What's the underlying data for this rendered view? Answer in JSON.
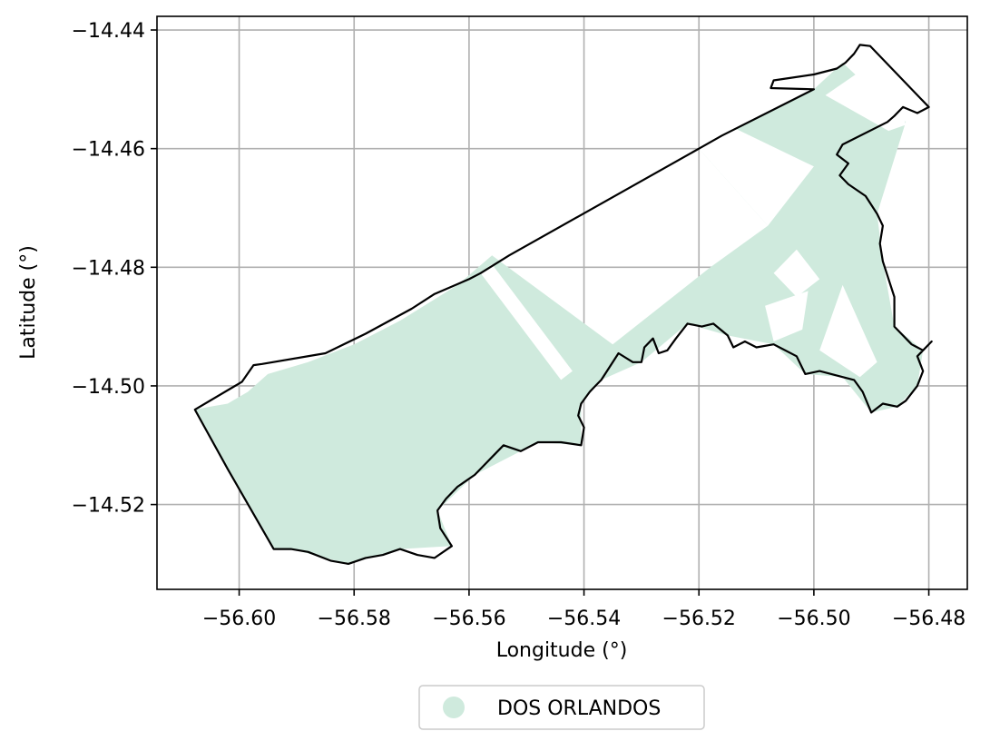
{
  "map": {
    "xlabel": "Longitude (°)",
    "ylabel": "Latitude (°)",
    "xlim": [
      -56.6143,
      -56.4733
    ],
    "ylim": [
      -14.5343,
      -14.4377
    ],
    "xticks": [
      {
        "value": -56.6,
        "label": "−56.60"
      },
      {
        "value": -56.58,
        "label": "−56.58"
      },
      {
        "value": -56.56,
        "label": "−56.56"
      },
      {
        "value": -56.54,
        "label": "−56.54"
      },
      {
        "value": -56.52,
        "label": "−56.52"
      },
      {
        "value": -56.5,
        "label": "−56.50"
      },
      {
        "value": -56.48,
        "label": "−56.48"
      }
    ],
    "yticks": [
      {
        "value": -14.44,
        "label": "−14.44"
      },
      {
        "value": -14.46,
        "label": "−14.46"
      },
      {
        "value": -14.48,
        "label": "−14.48"
      },
      {
        "value": -14.5,
        "label": "−14.50"
      },
      {
        "value": -14.52,
        "label": "−14.52"
      }
    ],
    "grid": true,
    "legend": {
      "placement": "bottom-center",
      "entries": [
        {
          "label": "DOS ORLANDOS",
          "color": "#cfeadd"
        }
      ]
    },
    "fill_color": "#cfeadd",
    "outline_color": "#000000",
    "grid_color": "#b0b0b0",
    "outline": [
      [
        -56.6077,
        -14.504
      ],
      [
        -56.5995,
        -14.4993
      ],
      [
        -56.5975,
        -14.4965
      ],
      [
        -56.596,
        -14.4963
      ],
      [
        -56.585,
        -14.4945
      ],
      [
        -56.578,
        -14.4912
      ],
      [
        -56.57,
        -14.487
      ],
      [
        -56.566,
        -14.4845
      ],
      [
        -56.56,
        -14.482
      ],
      [
        -56.558,
        -14.481
      ],
      [
        -56.553,
        -14.478
      ],
      [
        -56.52,
        -14.46
      ],
      [
        -56.516,
        -14.4578
      ],
      [
        -56.5,
        -14.45
      ],
      [
        -56.5075,
        -14.4498
      ],
      [
        -56.507,
        -14.4485
      ],
      [
        -56.5,
        -14.4475
      ],
      [
        -56.496,
        -14.4465
      ],
      [
        -56.4945,
        -14.4455
      ],
      [
        -56.493,
        -14.444
      ],
      [
        -56.492,
        -14.4425
      ],
      [
        -56.4902,
        -14.4427
      ],
      [
        -56.48,
        -14.453
      ],
      [
        -56.482,
        -14.454
      ],
      [
        -56.4845,
        -14.453
      ],
      [
        -56.486,
        -14.4545
      ],
      [
        -56.4872,
        -14.4555
      ],
      [
        -56.495,
        -14.4593
      ],
      [
        -56.496,
        -14.461
      ],
      [
        -56.494,
        -14.4625
      ],
      [
        -56.4955,
        -14.4645
      ],
      [
        -56.494,
        -14.466
      ],
      [
        -56.491,
        -14.468
      ],
      [
        -56.489,
        -14.471
      ],
      [
        -56.488,
        -14.473
      ],
      [
        -56.4885,
        -14.476
      ],
      [
        -56.488,
        -14.479
      ],
      [
        -56.486,
        -14.485
      ],
      [
        -56.486,
        -14.49
      ],
      [
        -56.483,
        -14.493
      ],
      [
        -56.481,
        -14.494
      ],
      [
        -56.4795,
        -14.4925
      ],
      [
        -56.482,
        -14.495
      ],
      [
        -56.481,
        -14.4975
      ],
      [
        -56.482,
        -14.5
      ],
      [
        -56.484,
        -14.5025
      ],
      [
        -56.4855,
        -14.5035
      ],
      [
        -56.488,
        -14.503
      ],
      [
        -56.49,
        -14.5045
      ],
      [
        -56.4915,
        -14.501
      ],
      [
        -56.493,
        -14.499
      ],
      [
        -56.495,
        -14.4985
      ],
      [
        -56.499,
        -14.4975
      ],
      [
        -56.5015,
        -14.498
      ],
      [
        -56.503,
        -14.495
      ],
      [
        -56.507,
        -14.493
      ],
      [
        -56.51,
        -14.4935
      ],
      [
        -56.512,
        -14.4925
      ],
      [
        -56.514,
        -14.4935
      ],
      [
        -56.515,
        -14.4915
      ],
      [
        -56.5175,
        -14.4895
      ],
      [
        -56.5195,
        -14.49
      ],
      [
        -56.522,
        -14.4895
      ],
      [
        -56.524,
        -14.492
      ],
      [
        -56.5255,
        -14.494
      ],
      [
        -56.527,
        -14.4945
      ],
      [
        -56.528,
        -14.492
      ],
      [
        -56.5295,
        -14.4935
      ],
      [
        -56.53,
        -14.496
      ],
      [
        -56.5315,
        -14.496
      ],
      [
        -56.534,
        -14.4945
      ],
      [
        -56.537,
        -14.499
      ],
      [
        -56.538,
        -14.5
      ],
      [
        -56.539,
        -14.501
      ],
      [
        -56.5405,
        -14.503
      ],
      [
        -56.541,
        -14.505
      ],
      [
        -56.54,
        -14.507
      ],
      [
        -56.5405,
        -14.51
      ],
      [
        -56.544,
        -14.5095
      ],
      [
        -56.548,
        -14.5095
      ],
      [
        -56.551,
        -14.511
      ],
      [
        -56.554,
        -14.51
      ],
      [
        -56.556,
        -14.512
      ],
      [
        -56.559,
        -14.515
      ],
      [
        -56.562,
        -14.517
      ],
      [
        -56.564,
        -14.519
      ],
      [
        -56.5655,
        -14.521
      ],
      [
        -56.565,
        -14.524
      ],
      [
        -56.563,
        -14.527
      ],
      [
        -56.566,
        -14.529
      ],
      [
        -56.569,
        -14.5285
      ],
      [
        -56.572,
        -14.5275
      ],
      [
        -56.575,
        -14.5285
      ],
      [
        -56.578,
        -14.529
      ],
      [
        -56.581,
        -14.53
      ],
      [
        -56.584,
        -14.5295
      ],
      [
        -56.588,
        -14.528
      ],
      [
        -56.591,
        -14.5275
      ],
      [
        -56.594,
        -14.5275
      ],
      [
        -56.602,
        -14.514
      ],
      [
        -56.6077,
        -14.504
      ]
    ],
    "fill_polygons": [
      [
        [
          -56.6077,
          -14.504
        ],
        [
          -56.605,
          -14.5035
        ],
        [
          -56.602,
          -14.503
        ],
        [
          -56.5985,
          -14.501
        ],
        [
          -56.595,
          -14.498
        ],
        [
          -56.588,
          -14.496
        ],
        [
          -56.58,
          -14.493
        ],
        [
          -56.572,
          -14.489
        ],
        [
          -56.562,
          -14.483
        ],
        [
          -56.556,
          -14.478
        ],
        [
          -56.535,
          -14.493
        ],
        [
          -56.518,
          -14.48
        ],
        [
          -56.508,
          -14.473
        ],
        [
          -56.52,
          -14.46
        ],
        [
          -56.5,
          -14.45
        ],
        [
          -56.495,
          -14.4455
        ],
        [
          -56.484,
          -14.4555
        ],
        [
          -56.489,
          -14.471
        ],
        [
          -56.488,
          -14.479
        ],
        [
          -56.486,
          -14.49
        ],
        [
          -56.481,
          -14.494
        ],
        [
          -56.482,
          -14.5
        ],
        [
          -56.4855,
          -14.5035
        ],
        [
          -56.49,
          -14.5045
        ],
        [
          -56.495,
          -14.4985
        ],
        [
          -56.5015,
          -14.498
        ],
        [
          -56.507,
          -14.493
        ],
        [
          -56.515,
          -14.4915
        ],
        [
          -56.522,
          -14.4895
        ],
        [
          -56.53,
          -14.496
        ],
        [
          -56.537,
          -14.499
        ],
        [
          -56.5405,
          -14.503
        ],
        [
          -56.5405,
          -14.51
        ],
        [
          -56.548,
          -14.5095
        ],
        [
          -56.559,
          -14.515
        ],
        [
          -56.5655,
          -14.521
        ],
        [
          -56.563,
          -14.527
        ],
        [
          -56.572,
          -14.5275
        ],
        [
          -56.581,
          -14.53
        ],
        [
          -56.591,
          -14.5275
        ],
        [
          -56.594,
          -14.5275
        ],
        [
          -56.602,
          -14.514
        ]
      ]
    ],
    "gap_polygons": [
      [
        [
          -56.558,
          -14.481
        ],
        [
          -56.544,
          -14.499
        ],
        [
          -56.542,
          -14.4975
        ],
        [
          -56.556,
          -14.4795
        ]
      ],
      [
        [
          -56.52,
          -14.46
        ],
        [
          -56.508,
          -14.473
        ],
        [
          -56.5,
          -14.463
        ],
        [
          -56.515,
          -14.456
        ]
      ],
      [
        [
          -56.498,
          -14.451
        ],
        [
          -56.492,
          -14.447
        ],
        [
          -56.488,
          -14.442
        ],
        [
          -56.484,
          -14.456
        ],
        [
          -56.487,
          -14.457
        ]
      ],
      [
        [
          -56.507,
          -14.481
        ],
        [
          -56.503,
          -14.477
        ],
        [
          -56.499,
          -14.482
        ],
        [
          -56.503,
          -14.485
        ]
      ],
      [
        [
          -56.5085,
          -14.4865
        ],
        [
          -56.501,
          -14.484
        ],
        [
          -56.502,
          -14.4905
        ],
        [
          -56.507,
          -14.4925
        ]
      ],
      [
        [
          -56.495,
          -14.483
        ],
        [
          -56.489,
          -14.496
        ],
        [
          -56.492,
          -14.4985
        ],
        [
          -56.499,
          -14.494
        ]
      ]
    ]
  }
}
